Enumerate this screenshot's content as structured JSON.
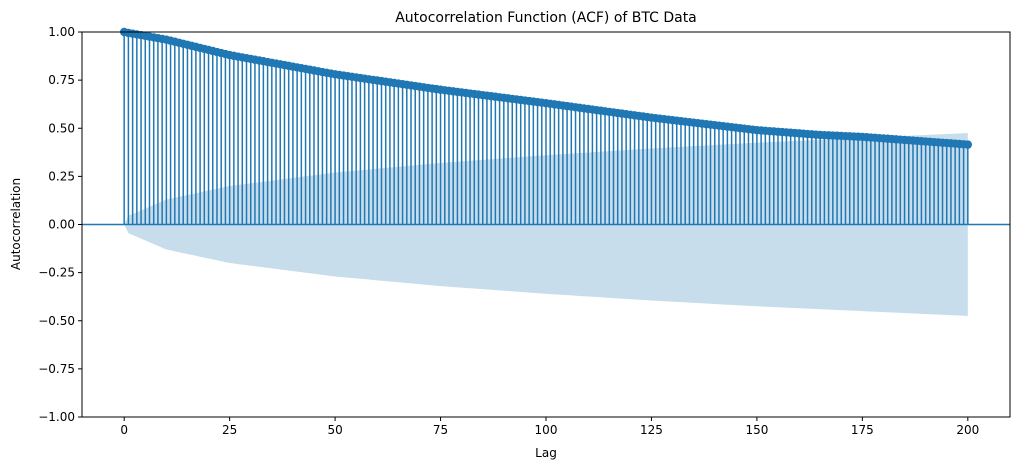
{
  "chart_data": {
    "type": "stem",
    "title": "Autocorrelation Function (ACF) of BTC Data",
    "xlabel": "Lag",
    "ylabel": "Autocorrelation",
    "xlim": [
      -10,
      210
    ],
    "ylim": [
      -1.0,
      1.0
    ],
    "xticks": [
      0,
      25,
      50,
      75,
      100,
      125,
      150,
      175,
      200
    ],
    "xtick_labels": [
      "0",
      "25",
      "50",
      "75",
      "100",
      "125",
      "150",
      "175",
      "200"
    ],
    "yticks": [
      -1.0,
      -0.75,
      -0.5,
      -0.25,
      0.0,
      0.25,
      0.5,
      0.75,
      1.0
    ],
    "ytick_labels": [
      "−1.00",
      "−0.75",
      "−0.50",
      "−0.25",
      "0.00",
      "0.25",
      "0.50",
      "0.75",
      "1.00"
    ],
    "grid": false,
    "legend": "none",
    "lags": {
      "start": 0,
      "end": 200,
      "step": 1
    },
    "acf_keypoints": [
      {
        "lag": 0,
        "acf": 1.0
      },
      {
        "lag": 1,
        "acf": 0.995
      },
      {
        "lag": 10,
        "acf": 0.96
      },
      {
        "lag": 25,
        "acf": 0.88
      },
      {
        "lag": 50,
        "acf": 0.78
      },
      {
        "lag": 75,
        "acf": 0.7
      },
      {
        "lag": 100,
        "acf": 0.63
      },
      {
        "lag": 125,
        "acf": 0.555
      },
      {
        "lag": 150,
        "acf": 0.49
      },
      {
        "lag": 165,
        "acf": 0.465
      },
      {
        "lag": 175,
        "acf": 0.455
      },
      {
        "lag": 200,
        "acf": 0.415
      }
    ],
    "confidence_band_keypoints": [
      {
        "lag": 0,
        "upper": 0.0
      },
      {
        "lag": 1,
        "upper": 0.045
      },
      {
        "lag": 10,
        "upper": 0.13
      },
      {
        "lag": 25,
        "upper": 0.2
      },
      {
        "lag": 50,
        "upper": 0.27
      },
      {
        "lag": 75,
        "upper": 0.32
      },
      {
        "lag": 100,
        "upper": 0.36
      },
      {
        "lag": 125,
        "upper": 0.395
      },
      {
        "lag": 150,
        "upper": 0.425
      },
      {
        "lag": 175,
        "upper": 0.45
      },
      {
        "lag": 200,
        "upper": 0.475
      }
    ],
    "colors": {
      "stem": "#1f77b4",
      "marker": "#1f77b4",
      "band": "#1f77b4",
      "band_opacity": 0.25,
      "zero_line": "#1f77b4"
    }
  }
}
